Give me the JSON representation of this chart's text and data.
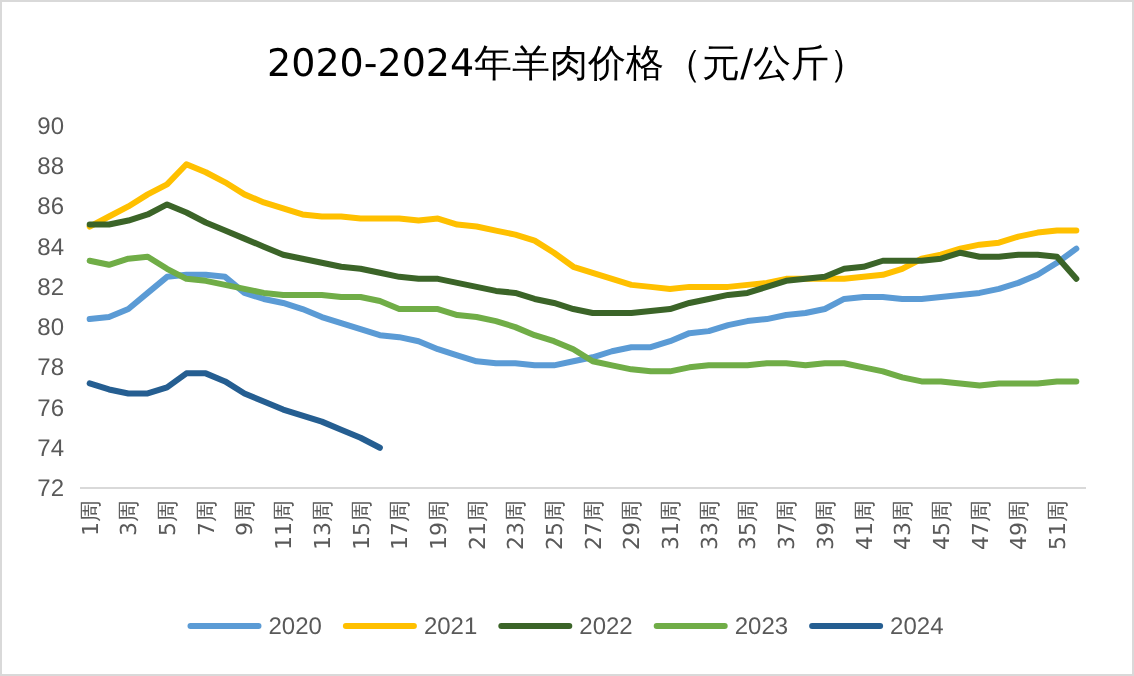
{
  "chart_data": {
    "type": "line",
    "title": "2020-2024年羊肉价格（元/公斤）",
    "categories": [
      "1周",
      null,
      "3周",
      null,
      "5周",
      null,
      "7周",
      null,
      "9周",
      null,
      "11周",
      null,
      "13周",
      null,
      "15周",
      null,
      "17周",
      null,
      "19周",
      null,
      "21周",
      null,
      "23周",
      null,
      "25周",
      null,
      "27周",
      null,
      "29周",
      null,
      "31周",
      null,
      "33周",
      null,
      "35周",
      null,
      "37周",
      null,
      "39周",
      null,
      "41周",
      null,
      "43周",
      null,
      "45周",
      null,
      "47周",
      null,
      "49周",
      null,
      "51周",
      null
    ],
    "series": [
      {
        "name": "2020",
        "color": "#5b9bd5",
        "values": [
          80.4,
          80.5,
          80.9,
          81.7,
          82.5,
          82.6,
          82.6,
          82.5,
          81.7,
          81.4,
          81.2,
          80.9,
          80.5,
          80.2,
          79.9,
          79.6,
          79.5,
          79.3,
          78.9,
          78.6,
          78.3,
          78.2,
          78.2,
          78.1,
          78.1,
          78.3,
          78.5,
          78.8,
          79.0,
          79.0,
          79.3,
          79.7,
          79.8,
          80.1,
          80.3,
          80.4,
          80.6,
          80.7,
          80.9,
          81.4,
          81.5,
          81.5,
          81.4,
          81.4,
          81.5,
          81.6,
          81.7,
          81.9,
          82.2,
          82.6,
          83.2,
          83.9
        ]
      },
      {
        "name": "2021",
        "color": "#ffc000",
        "values": [
          85.0,
          85.5,
          86.0,
          86.6,
          87.1,
          88.1,
          87.7,
          87.2,
          86.6,
          86.2,
          85.9,
          85.6,
          85.5,
          85.5,
          85.4,
          85.4,
          85.4,
          85.3,
          85.4,
          85.1,
          85.0,
          84.8,
          84.6,
          84.3,
          83.7,
          83.0,
          82.7,
          82.4,
          82.1,
          82.0,
          81.9,
          82.0,
          82.0,
          82.0,
          82.1,
          82.2,
          82.4,
          82.4,
          82.4,
          82.4,
          82.5,
          82.6,
          82.9,
          83.4,
          83.6,
          83.9,
          84.1,
          84.2,
          84.5,
          84.7,
          84.8,
          84.8
        ]
      },
      {
        "name": "2022",
        "color": "#3b6428",
        "values": [
          85.1,
          85.1,
          85.3,
          85.6,
          86.1,
          85.7,
          85.2,
          84.8,
          84.4,
          84.0,
          83.6,
          83.4,
          83.2,
          83.0,
          82.9,
          82.7,
          82.5,
          82.4,
          82.4,
          82.2,
          82.0,
          81.8,
          81.7,
          81.4,
          81.2,
          80.9,
          80.7,
          80.7,
          80.7,
          80.8,
          80.9,
          81.2,
          81.4,
          81.6,
          81.7,
          82.0,
          82.3,
          82.4,
          82.5,
          82.9,
          83.0,
          83.3,
          83.3,
          83.3,
          83.4,
          83.7,
          83.5,
          83.5,
          83.6,
          83.6,
          83.5,
          82.4
        ]
      },
      {
        "name": "2023",
        "color": "#70ad47",
        "values": [
          83.3,
          83.1,
          83.4,
          83.5,
          82.9,
          82.4,
          82.3,
          82.1,
          81.9,
          81.7,
          81.6,
          81.6,
          81.6,
          81.5,
          81.5,
          81.3,
          80.9,
          80.9,
          80.9,
          80.6,
          80.5,
          80.3,
          80.0,
          79.6,
          79.3,
          78.9,
          78.3,
          78.1,
          77.9,
          77.8,
          77.8,
          78.0,
          78.1,
          78.1,
          78.1,
          78.2,
          78.2,
          78.1,
          78.2,
          78.2,
          78.0,
          77.8,
          77.5,
          77.3,
          77.3,
          77.2,
          77.1,
          77.2,
          77.2,
          77.2,
          77.3,
          77.3
        ]
      },
      {
        "name": "2024",
        "color": "#255e91",
        "values": [
          77.2,
          76.9,
          76.7,
          76.7,
          77.0,
          77.7,
          77.7,
          77.3,
          76.7,
          76.3,
          75.9,
          75.6,
          75.3,
          74.9,
          74.5,
          74.0,
          null,
          null,
          null,
          null,
          null,
          null,
          null,
          null,
          null,
          null,
          null,
          null,
          null,
          null,
          null,
          null,
          null,
          null,
          null,
          null,
          null,
          null,
          null,
          null,
          null,
          null,
          null,
          null,
          null,
          null,
          null,
          null,
          null,
          null,
          null,
          null
        ]
      }
    ],
    "ylim": [
      72,
      90
    ],
    "yticks": [
      72,
      74,
      76,
      78,
      80,
      82,
      84,
      86,
      88,
      90
    ],
    "grid": false,
    "legend": "bottom",
    "line_style": "solid",
    "marker": "none"
  }
}
